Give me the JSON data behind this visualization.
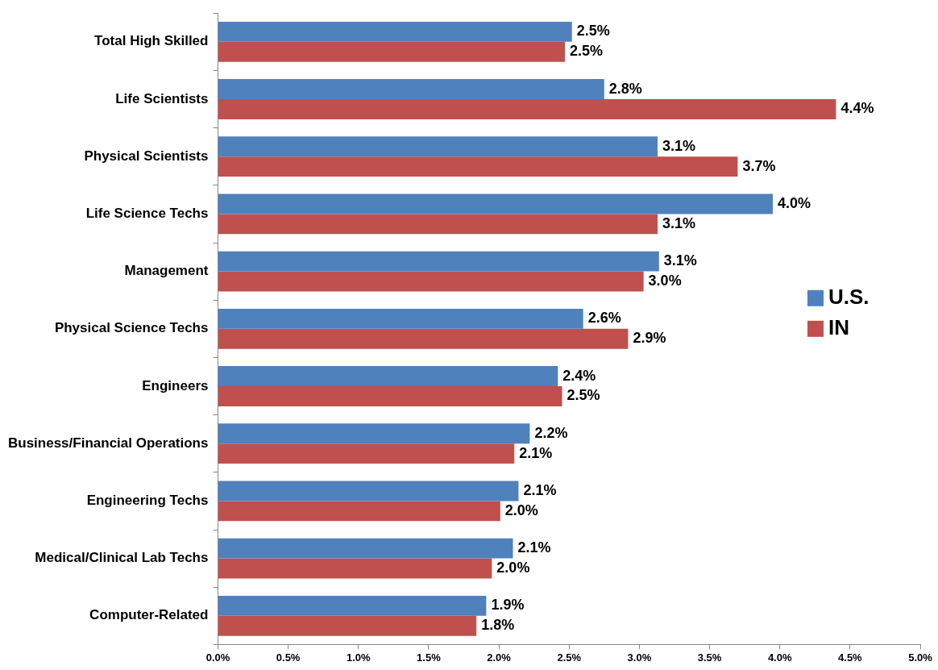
{
  "chart_data": {
    "type": "bar",
    "orientation": "horizontal",
    "categories": [
      "Total High Skilled",
      "Life Scientists",
      "Physical Scientists",
      "Life Science Techs",
      "Management",
      "Physical Science Techs",
      "Engineers",
      "Business/Financial Operations",
      "Engineering Techs",
      "Medical/Clinical Lab Techs",
      "Computer-Related"
    ],
    "series": [
      {
        "name": "U.S.",
        "color": "#4f81bd",
        "values": [
          2.52,
          2.75,
          3.13,
          3.95,
          3.14,
          2.6,
          2.42,
          2.22,
          2.14,
          2.1,
          1.91
        ],
        "value_labels": [
          "2.5%",
          "2.8%",
          "3.1%",
          "4.0%",
          "3.1%",
          "2.6%",
          "2.4%",
          "2.2%",
          "2.1%",
          "2.1%",
          "1.9%"
        ]
      },
      {
        "name": "IN",
        "color": "#c0504d",
        "values": [
          2.47,
          4.4,
          3.7,
          3.13,
          3.03,
          2.92,
          2.45,
          2.11,
          2.01,
          1.95,
          1.84
        ],
        "value_labels": [
          "2.5%",
          "4.4%",
          "3.7%",
          "3.1%",
          "3.0%",
          "2.9%",
          "2.5%",
          "2.1%",
          "2.0%",
          "2.0%",
          "1.8%"
        ]
      }
    ],
    "xlim": [
      0,
      5
    ],
    "xticks": [
      {
        "value": 0,
        "label": "0.0%"
      },
      {
        "value": 0.5,
        "label": "0.5%"
      },
      {
        "value": 1,
        "label": "1.0%"
      },
      {
        "value": 1.5,
        "label": "1.5%"
      },
      {
        "value": 2,
        "label": "2.0%"
      },
      {
        "value": 2.5,
        "label": "2.5%"
      },
      {
        "value": 3,
        "label": "3.0%"
      },
      {
        "value": 3.5,
        "label": "3.5%"
      },
      {
        "value": 4,
        "label": "4.0%"
      },
      {
        "value": 4.5,
        "label": "4.5%"
      },
      {
        "value": 5,
        "label": "5.0%"
      }
    ],
    "legend": "right"
  }
}
